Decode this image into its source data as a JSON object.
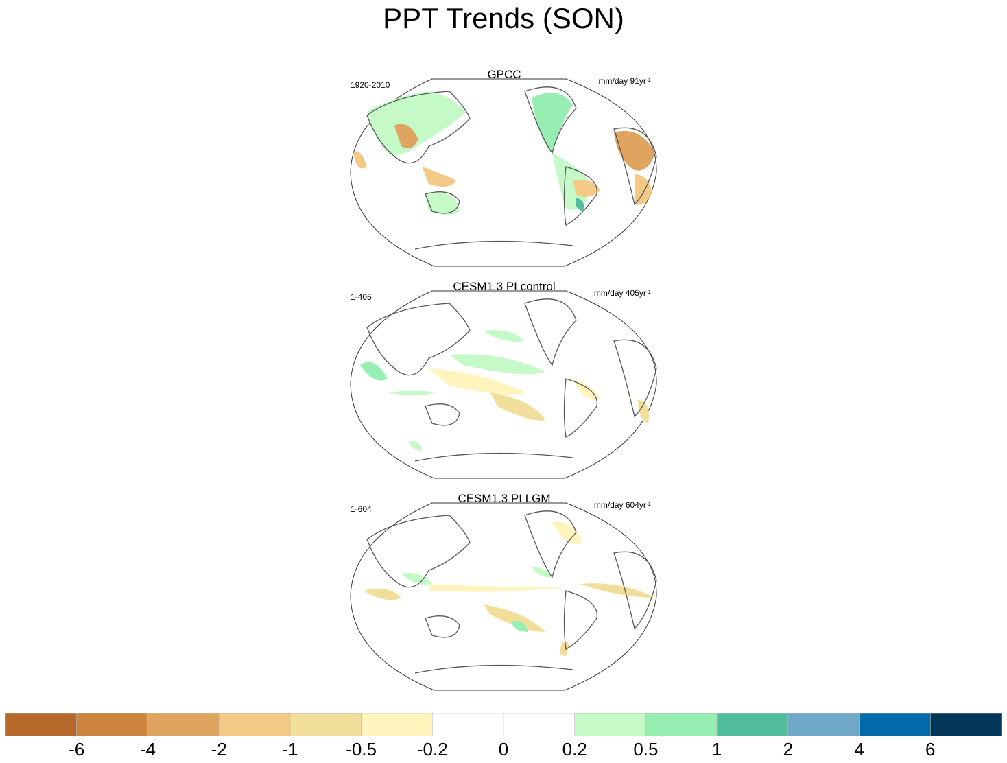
{
  "title": "PPT Trends (SON)",
  "panels": [
    {
      "title": "GPCC",
      "period": "1920-2010",
      "units": "mm/day 91yr",
      "units_exp": "-1"
    },
    {
      "title": "CESM1.3 PI control",
      "period": "1-405",
      "units": "mm/day 405yr",
      "units_exp": "-1"
    },
    {
      "title": "CESM1.3 PI LGM",
      "period": "1-604",
      "units": "mm/day 604yr",
      "units_exp": "-1"
    }
  ],
  "colorbar": {
    "colors": [
      "#b5692a",
      "#cc843f",
      "#dfa460",
      "#f2c985",
      "#f1de9b",
      "#fff4bd",
      "#ffffff",
      "#ffffff",
      "#c6f9c8",
      "#97eeb2",
      "#51bd9c",
      "#6fa7c6",
      "#036ba9",
      "#03375a"
    ],
    "ticks": [
      "-6",
      "-4",
      "-2",
      "-1",
      "-0.5",
      "-0.2",
      "0",
      "0.2",
      "0.5",
      "1",
      "2",
      "4",
      "6"
    ]
  },
  "colors": {
    "coastline": "#555555",
    "map_outline": "#333333",
    "ocean": "#ffffff"
  }
}
